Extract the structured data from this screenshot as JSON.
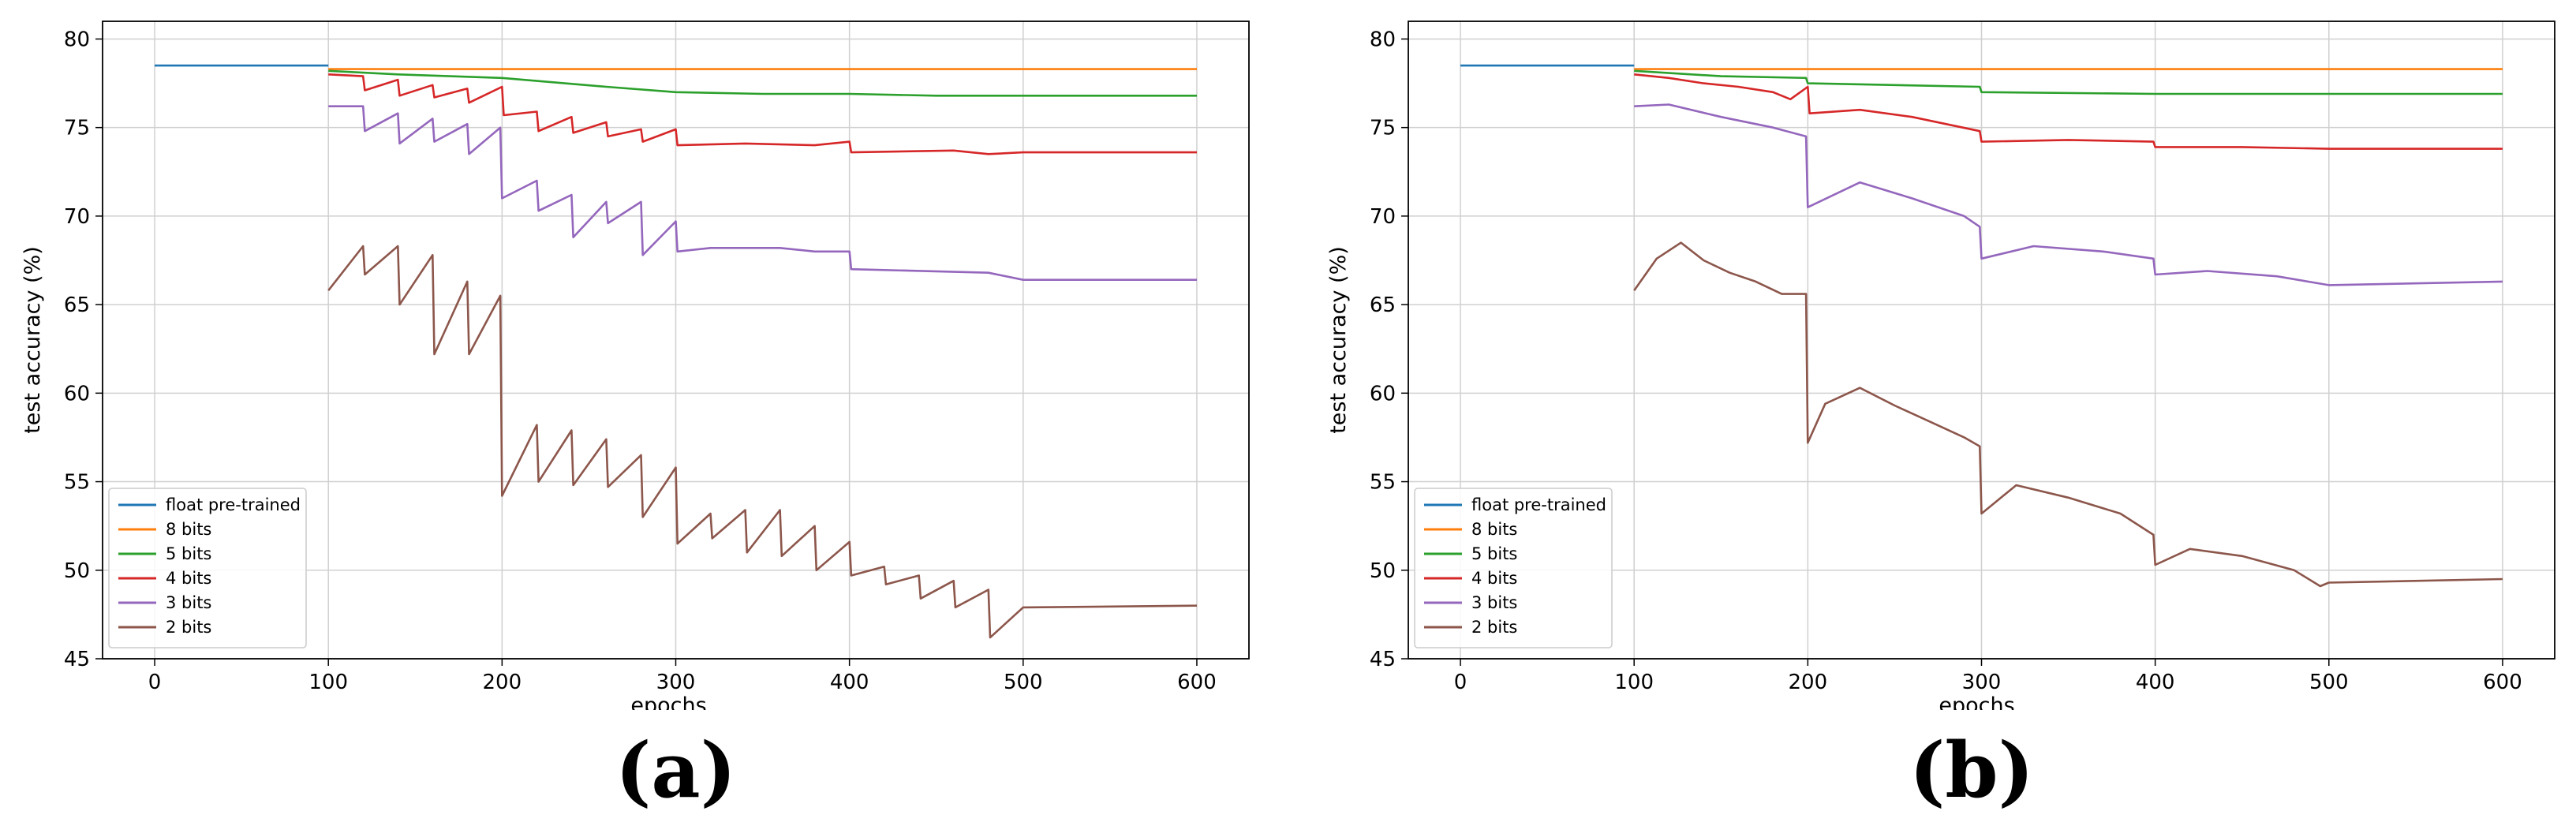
{
  "panel_labels": [
    "(a)",
    "(b)"
  ],
  "chart_data": [
    {
      "type": "line",
      "panel": "(a)",
      "xlabel": "epochs",
      "ylabel": "test accuracy (%)",
      "xlim": [
        -30,
        630
      ],
      "ylim": [
        45,
        81
      ],
      "xticks": [
        0,
        100,
        200,
        300,
        400,
        500,
        600
      ],
      "yticks": [
        45,
        50,
        55,
        60,
        65,
        70,
        75,
        80
      ],
      "grid": true,
      "legend": "lower-left",
      "series": [
        {
          "name": "float pre-trained",
          "color": "#1f77b4",
          "x": [
            0,
            100
          ],
          "y": [
            78.5,
            78.5
          ]
        },
        {
          "name": "8 bits",
          "color": "#ff7f0e",
          "x": [
            100,
            200,
            300,
            400,
            500,
            600
          ],
          "y": [
            78.3,
            78.3,
            78.3,
            78.3,
            78.3,
            78.3
          ]
        },
        {
          "name": "5 bits",
          "color": "#2ca02c",
          "x": [
            100,
            140,
            200,
            260,
            300,
            350,
            400,
            450,
            500,
            600
          ],
          "y": [
            78.2,
            78.0,
            77.8,
            77.3,
            77.0,
            76.9,
            76.9,
            76.8,
            76.8,
            76.8
          ]
        },
        {
          "name": "4 bits",
          "color": "#d62728",
          "x": [
            100,
            120,
            121,
            140,
            141,
            160,
            161,
            180,
            181,
            200,
            201,
            220,
            221,
            240,
            241,
            260,
            261,
            280,
            281,
            300,
            301,
            340,
            380,
            400,
            401,
            460,
            480,
            500,
            600
          ],
          "y": [
            78.0,
            77.9,
            77.1,
            77.7,
            76.8,
            77.4,
            76.7,
            77.2,
            76.4,
            77.3,
            75.7,
            75.9,
            74.8,
            75.6,
            74.7,
            75.3,
            74.5,
            74.9,
            74.2,
            74.9,
            74.0,
            74.1,
            74.0,
            74.2,
            73.6,
            73.7,
            73.5,
            73.6,
            73.6
          ]
        },
        {
          "name": "3 bits",
          "color": "#9467bd",
          "x": [
            100,
            120,
            121,
            140,
            141,
            160,
            161,
            180,
            181,
            199,
            200,
            220,
            221,
            240,
            241,
            260,
            261,
            280,
            281,
            300,
            301,
            320,
            340,
            360,
            380,
            400,
            401,
            480,
            500,
            600
          ],
          "y": [
            76.2,
            76.2,
            74.8,
            75.8,
            74.1,
            75.5,
            74.2,
            75.2,
            73.5,
            75.0,
            71.0,
            72.0,
            70.3,
            71.2,
            68.8,
            70.8,
            69.6,
            70.8,
            67.8,
            69.7,
            68.0,
            68.2,
            68.2,
            68.2,
            68.0,
            68.0,
            67.0,
            66.8,
            66.4,
            66.4
          ]
        },
        {
          "name": "2 bits",
          "color": "#8c564b",
          "x": [
            100,
            120,
            121,
            140,
            141,
            160,
            161,
            180,
            181,
            199,
            200,
            220,
            221,
            240,
            241,
            260,
            261,
            280,
            281,
            300,
            301,
            320,
            321,
            340,
            341,
            360,
            361,
            380,
            381,
            400,
            401,
            420,
            421,
            440,
            441,
            460,
            461,
            480,
            481,
            500,
            600
          ],
          "y": [
            65.8,
            68.3,
            66.7,
            68.3,
            65.0,
            67.8,
            62.2,
            66.3,
            62.2,
            65.5,
            54.2,
            58.2,
            55.0,
            57.9,
            54.8,
            57.4,
            54.7,
            56.5,
            53.0,
            55.8,
            51.5,
            53.2,
            51.8,
            53.4,
            51.0,
            53.4,
            50.8,
            52.5,
            50.0,
            51.6,
            49.7,
            50.2,
            49.2,
            49.7,
            48.4,
            49.4,
            47.9,
            48.9,
            46.2,
            47.9,
            48.0
          ]
        }
      ]
    },
    {
      "type": "line",
      "panel": "(b)",
      "xlabel": "epochs",
      "ylabel": "test accuracy (%)",
      "xlim": [
        -30,
        630
      ],
      "ylim": [
        45,
        81
      ],
      "xticks": [
        0,
        100,
        200,
        300,
        400,
        500,
        600
      ],
      "yticks": [
        45,
        50,
        55,
        60,
        65,
        70,
        75,
        80
      ],
      "grid": true,
      "legend": "lower-left",
      "series": [
        {
          "name": "float pre-trained",
          "color": "#1f77b4",
          "x": [
            0,
            100
          ],
          "y": [
            78.5,
            78.5
          ]
        },
        {
          "name": "8 bits",
          "color": "#ff7f0e",
          "x": [
            100,
            200,
            300,
            400,
            500,
            600
          ],
          "y": [
            78.3,
            78.3,
            78.3,
            78.3,
            78.3,
            78.3
          ]
        },
        {
          "name": "5 bits",
          "color": "#2ca02c",
          "x": [
            100,
            150,
            199,
            200,
            299,
            300,
            400,
            500,
            600
          ],
          "y": [
            78.2,
            77.9,
            77.8,
            77.5,
            77.3,
            77.0,
            76.9,
            76.9,
            76.9
          ]
        },
        {
          "name": "4 bits",
          "color": "#d62728",
          "x": [
            100,
            120,
            140,
            160,
            180,
            190,
            200,
            201,
            230,
            260,
            299,
            300,
            350,
            399,
            400,
            450,
            500,
            600
          ],
          "y": [
            78.0,
            77.8,
            77.5,
            77.3,
            77.0,
            76.6,
            77.3,
            75.8,
            76.0,
            75.6,
            74.8,
            74.2,
            74.3,
            74.2,
            73.9,
            73.9,
            73.8,
            73.8
          ]
        },
        {
          "name": "3 bits",
          "color": "#9467bd",
          "x": [
            100,
            120,
            150,
            180,
            199,
            200,
            230,
            260,
            290,
            299,
            300,
            330,
            370,
            399,
            400,
            430,
            470,
            500,
            600
          ],
          "y": [
            76.2,
            76.3,
            75.6,
            75.0,
            74.5,
            70.5,
            71.9,
            71.0,
            70.0,
            69.4,
            67.6,
            68.3,
            68.0,
            67.6,
            66.7,
            66.9,
            66.6,
            66.1,
            66.3
          ]
        },
        {
          "name": "2 bits",
          "color": "#8c564b",
          "x": [
            100,
            113,
            127,
            140,
            155,
            170,
            185,
            199,
            200,
            210,
            230,
            250,
            270,
            290,
            299,
            300,
            320,
            350,
            380,
            399,
            400,
            420,
            450,
            480,
            495,
            500,
            600
          ],
          "y": [
            65.8,
            67.6,
            68.5,
            67.5,
            66.8,
            66.3,
            65.6,
            65.6,
            57.2,
            59.4,
            60.3,
            59.3,
            58.4,
            57.5,
            57.0,
            53.2,
            54.8,
            54.1,
            53.2,
            52.0,
            50.3,
            51.2,
            50.8,
            50.0,
            49.1,
            49.3,
            49.5
          ]
        }
      ]
    }
  ]
}
